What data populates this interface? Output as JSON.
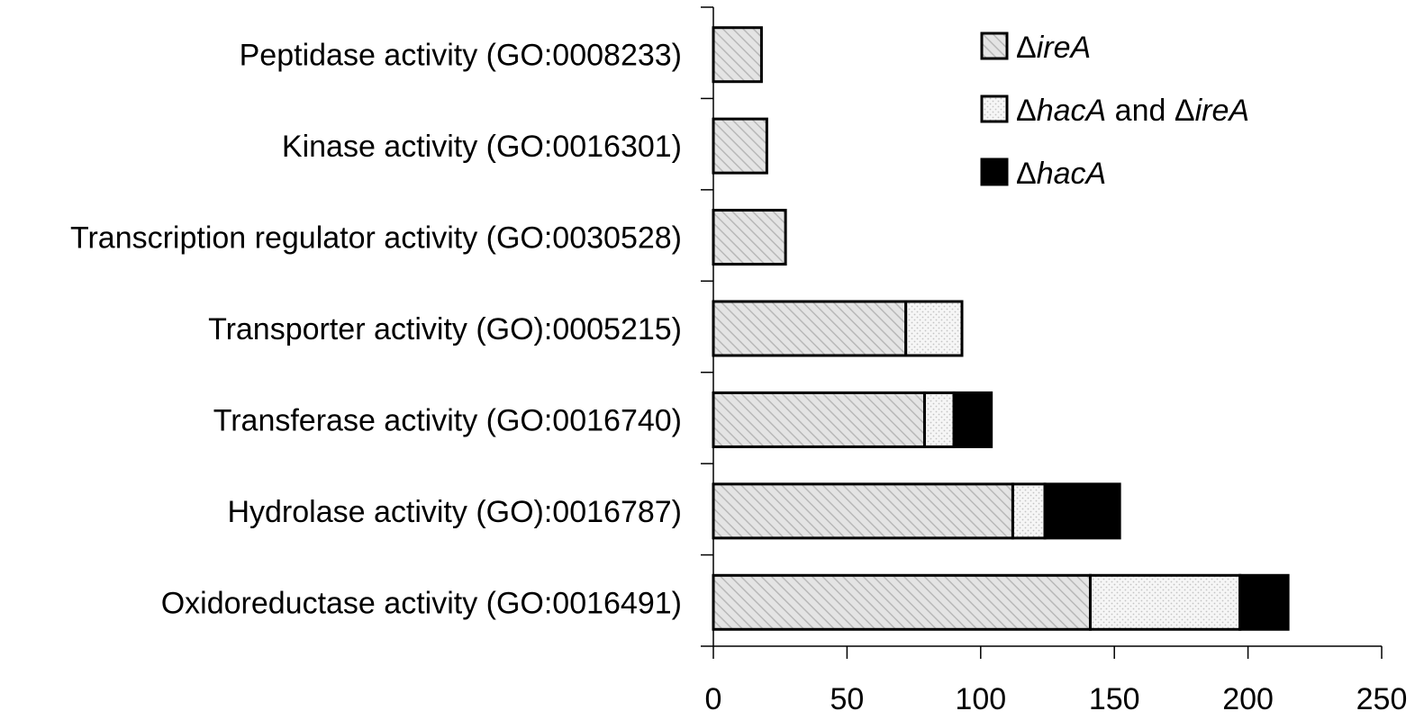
{
  "chart_data": {
    "type": "bar",
    "orientation": "horizontal",
    "stacked": true,
    "title": "",
    "xlabel": "",
    "ylabel": "",
    "xlim": [
      0,
      250
    ],
    "xticks": [
      0,
      50,
      100,
      150,
      200,
      250
    ],
    "grid": false,
    "legend_position": "top-right",
    "categories": [
      "Peptidase activity (GO:0008233)",
      "Kinase activity (GO:0016301)",
      "Transcription regulator activity (GO:0030528)",
      "Transporter activity (GO):0005215)",
      "Transferase activity (GO:0016740)",
      "Hydrolase activity (GO):0016787)",
      "Oxidoreductase activity (GO:0016491)"
    ],
    "series": [
      {
        "name": "ΔireA",
        "legend_parts": [
          {
            "t": "Δ",
            "i": false
          },
          {
            "t": "ireA",
            "i": true
          }
        ],
        "pattern": "hatch",
        "color": "#d9d9d9",
        "values": [
          18,
          20,
          27,
          72,
          79,
          112,
          141
        ]
      },
      {
        "name": "ΔhacA and ΔireA",
        "legend_parts": [
          {
            "t": "Δ",
            "i": false
          },
          {
            "t": "hacA",
            "i": true
          },
          {
            "t": " and Δ",
            "i": false
          },
          {
            "t": "ireA",
            "i": true
          }
        ],
        "pattern": "dots",
        "color": "#f2f2f2",
        "values": [
          0,
          0,
          0,
          21,
          11,
          12,
          56
        ]
      },
      {
        "name": "ΔhacA",
        "legend_parts": [
          {
            "t": "Δ",
            "i": false
          },
          {
            "t": "hacA",
            "i": true
          }
        ],
        "pattern": "solid",
        "color": "#000000",
        "values": [
          0,
          0,
          0,
          0,
          14,
          28,
          18
        ]
      }
    ]
  }
}
